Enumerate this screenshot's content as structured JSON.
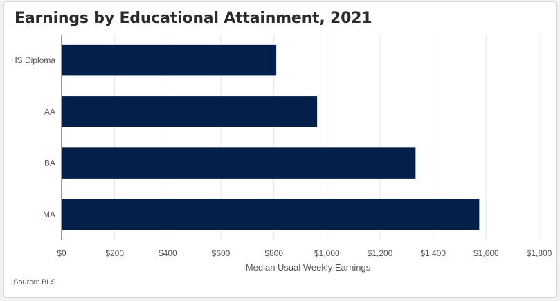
{
  "chart_data": {
    "type": "bar",
    "orientation": "horizontal",
    "title": "Earnings by Educational Attainment, 2021",
    "categories": [
      "HS Diploma",
      "AA",
      "BA",
      "MA"
    ],
    "values": [
      809,
      963,
      1334,
      1574
    ],
    "xlabel": "Median Usual Weekly Earnings",
    "ylabel": "",
    "xlim": [
      0,
      1800
    ],
    "x_ticks": [
      0,
      200,
      400,
      600,
      800,
      1000,
      1200,
      1400,
      1600,
      1800
    ],
    "x_tick_labels": [
      "$0",
      "$200",
      "$400",
      "$600",
      "$800",
      "$1,000",
      "$1,200",
      "$1,400",
      "$1,600",
      "$1,800"
    ],
    "grid": "vertical",
    "bar_color": "#03204b",
    "source": "Source: BLS"
  }
}
